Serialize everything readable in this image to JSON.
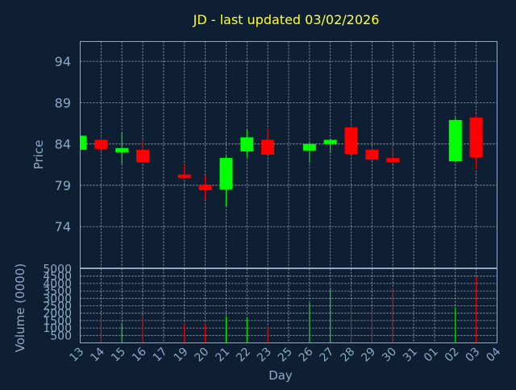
{
  "chart_data": {
    "type": "candlestick",
    "title": "JD - last updated 03/02/2026",
    "xlabel": "Day",
    "ylabel_price": "Price",
    "ylabel_volume": "Volume (0000)",
    "x_ticks": [
      "13",
      "14",
      "15",
      "16",
      "17",
      "19",
      "20",
      "21",
      "22",
      "23",
      "25",
      "26",
      "27",
      "28",
      "29",
      "30",
      "31",
      "01",
      "02",
      "03",
      "04"
    ],
    "price_ticks": [
      94,
      89,
      84,
      79,
      74
    ],
    "volume_ticks": [
      5000,
      4500,
      4000,
      3500,
      3000,
      2500,
      2000,
      1500,
      1000,
      500
    ],
    "price_range": [
      69,
      96.4
    ],
    "volume_range": [
      0,
      5000
    ],
    "grid": true,
    "colors": {
      "up": "#00ff00",
      "down": "#ff0000",
      "title": "#ffff33",
      "axis": "#8fa8c8",
      "background": "#0f1f33"
    },
    "candles": [
      {
        "day": "13",
        "open": 83.3,
        "high": 85.0,
        "low": 83.2,
        "close": 85.0,
        "volume": 2600
      },
      {
        "day": "14",
        "open": 84.5,
        "high": 85.0,
        "low": 83.2,
        "close": 83.4,
        "volume": 1700
      },
      {
        "day": "15",
        "open": 83.0,
        "high": 85.4,
        "low": 81.6,
        "close": 83.5,
        "volume": 1350
      },
      {
        "day": "16",
        "open": 83.3,
        "high": 84.4,
        "low": 81.8,
        "close": 81.8,
        "volume": 1800
      },
      {
        "day": "19",
        "open": 80.3,
        "high": 81.5,
        "low": 79.8,
        "close": 79.9,
        "volume": 1300
      },
      {
        "day": "20",
        "open": 79.0,
        "high": 80.2,
        "low": 77.3,
        "close": 78.4,
        "volume": 1300
      },
      {
        "day": "21",
        "open": 78.5,
        "high": 82.5,
        "low": 76.5,
        "close": 82.3,
        "volume": 1800
      },
      {
        "day": "22",
        "open": 83.1,
        "high": 85.7,
        "low": 82.4,
        "close": 84.8,
        "volume": 1700
      },
      {
        "day": "23",
        "open": 84.5,
        "high": 85.9,
        "low": 82.8,
        "close": 82.7,
        "volume": 1050
      },
      {
        "day": "26",
        "open": 83.2,
        "high": 84.1,
        "low": 81.7,
        "close": 84.0,
        "volume": 2700
      },
      {
        "day": "27",
        "open": 84.0,
        "high": 84.6,
        "low": 82.9,
        "close": 84.5,
        "volume": 3700
      },
      {
        "day": "28",
        "open": 86.0,
        "high": 86.9,
        "low": 82.8,
        "close": 82.8,
        "volume": 2900
      },
      {
        "day": "29",
        "open": 83.3,
        "high": 83.7,
        "low": 82.0,
        "close": 82.1,
        "volume": 2300
      },
      {
        "day": "30",
        "open": 82.3,
        "high": 83.6,
        "low": 81.6,
        "close": 81.8,
        "volume": 3700
      },
      {
        "day": "02",
        "open": 81.9,
        "high": 87.2,
        "low": 81.8,
        "close": 86.9,
        "volume": 2400
      },
      {
        "day": "03",
        "open": 87.2,
        "high": 87.5,
        "low": 81.0,
        "close": 82.4,
        "volume": 4500
      }
    ]
  }
}
